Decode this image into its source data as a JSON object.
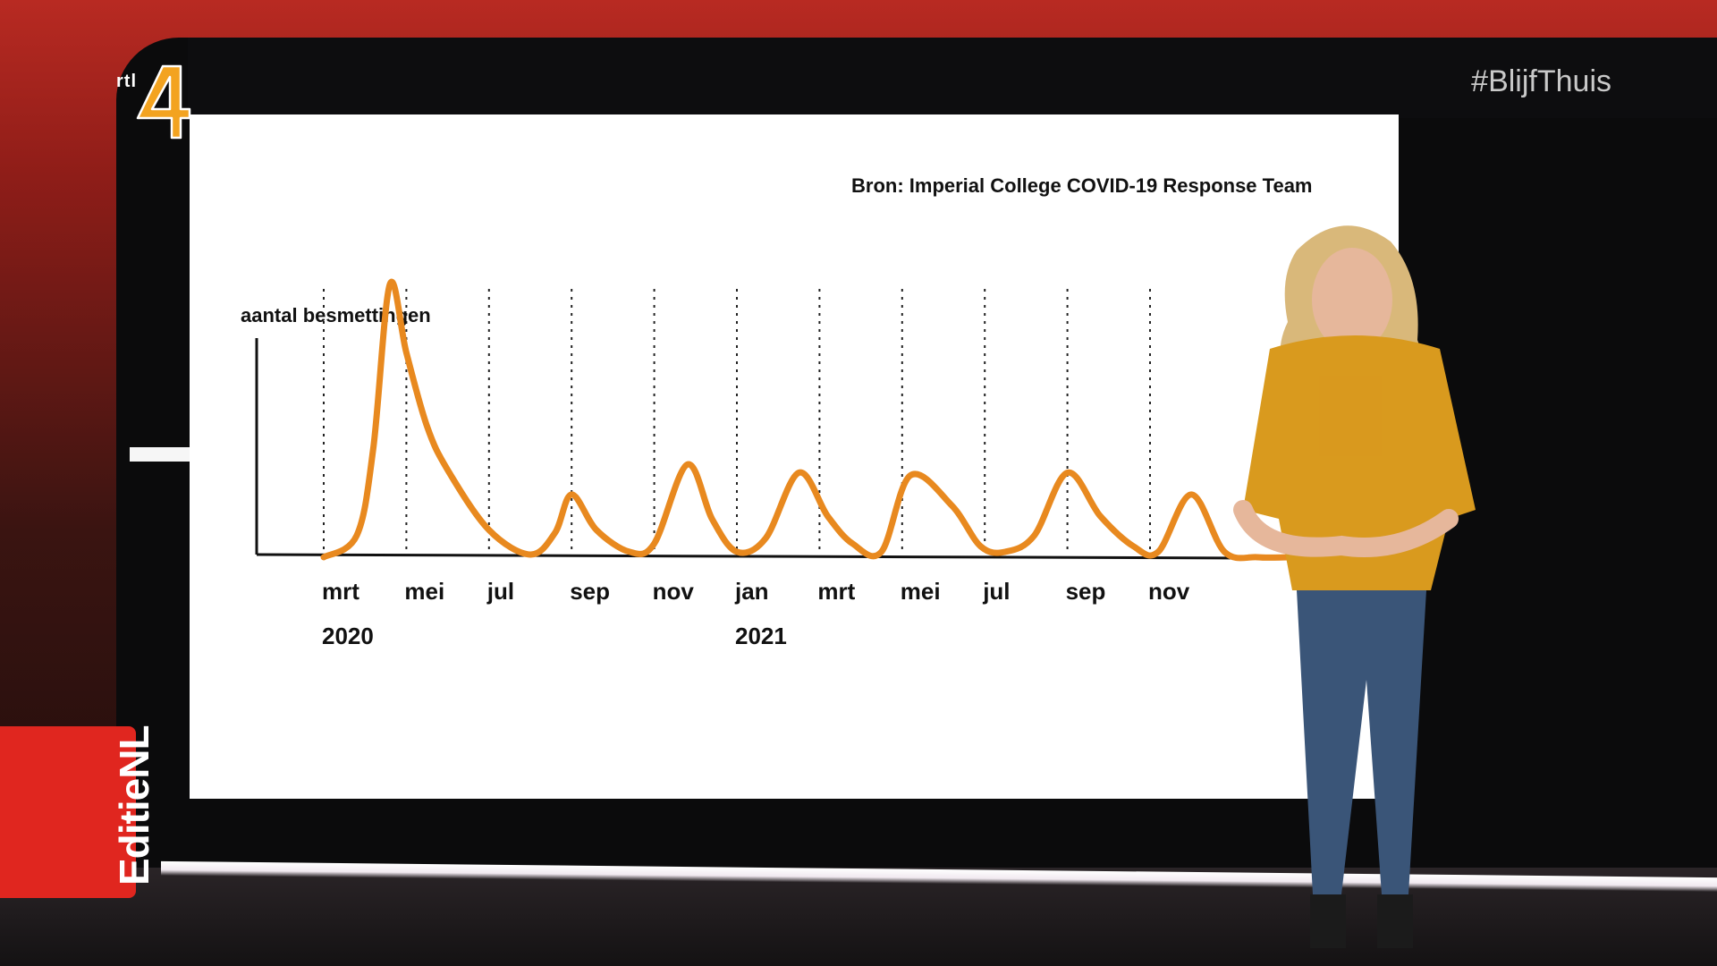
{
  "broadcast": {
    "channel_logo_text": "rtl",
    "channel_logo_number": "4",
    "hashtag": "#BlijfThuis",
    "program_badge": "EditieNL"
  },
  "colors": {
    "brand_red": "#e0261f",
    "curve_orange": "#e8891f",
    "logo_orange": "#f3a320"
  },
  "chart_data": {
    "type": "line",
    "source_note": "Bron: Imperial College COVID-19 Response Team",
    "ylabel": "aantal besmettingen",
    "xlabel": "",
    "y_ticks_shown": false,
    "grid": "vertical dotted lines at each tick",
    "tick_labels": [
      "mrt",
      "mei",
      "jul",
      "sep",
      "nov",
      "jan",
      "mrt",
      "mei",
      "jul",
      "sep",
      "nov"
    ],
    "year_labels": [
      {
        "label": "2020",
        "under_tick": 0
      },
      {
        "label": "2021",
        "under_tick": 5
      }
    ],
    "x_range_months": [
      0,
      22
    ],
    "ylim": [
      0,
      100
    ],
    "series": [
      {
        "x": [
          0.0,
          0.8,
          1.2,
          1.6,
          2.0,
          2.5,
          3.0,
          4.0,
          5.0,
          5.6,
          6.0,
          6.6,
          7.4,
          8.0,
          8.8,
          9.4,
          10.0,
          10.7,
          11.5,
          12.2,
          12.8,
          13.5,
          14.2,
          15.2,
          15.9,
          16.5,
          17.2,
          18.0,
          18.8,
          19.6,
          20.2,
          21.0,
          21.8,
          22.6,
          23.4,
          24.0
        ],
        "y": [
          0,
          8,
          40,
          100,
          75,
          48,
          32,
          10,
          1,
          9,
          23,
          10,
          2,
          5,
          34,
          14,
          2,
          7,
          31,
          15,
          5,
          2,
          30,
          19,
          4,
          2,
          8,
          31,
          15,
          4,
          2,
          23,
          2,
          0,
          0,
          0
        ]
      }
    ]
  }
}
